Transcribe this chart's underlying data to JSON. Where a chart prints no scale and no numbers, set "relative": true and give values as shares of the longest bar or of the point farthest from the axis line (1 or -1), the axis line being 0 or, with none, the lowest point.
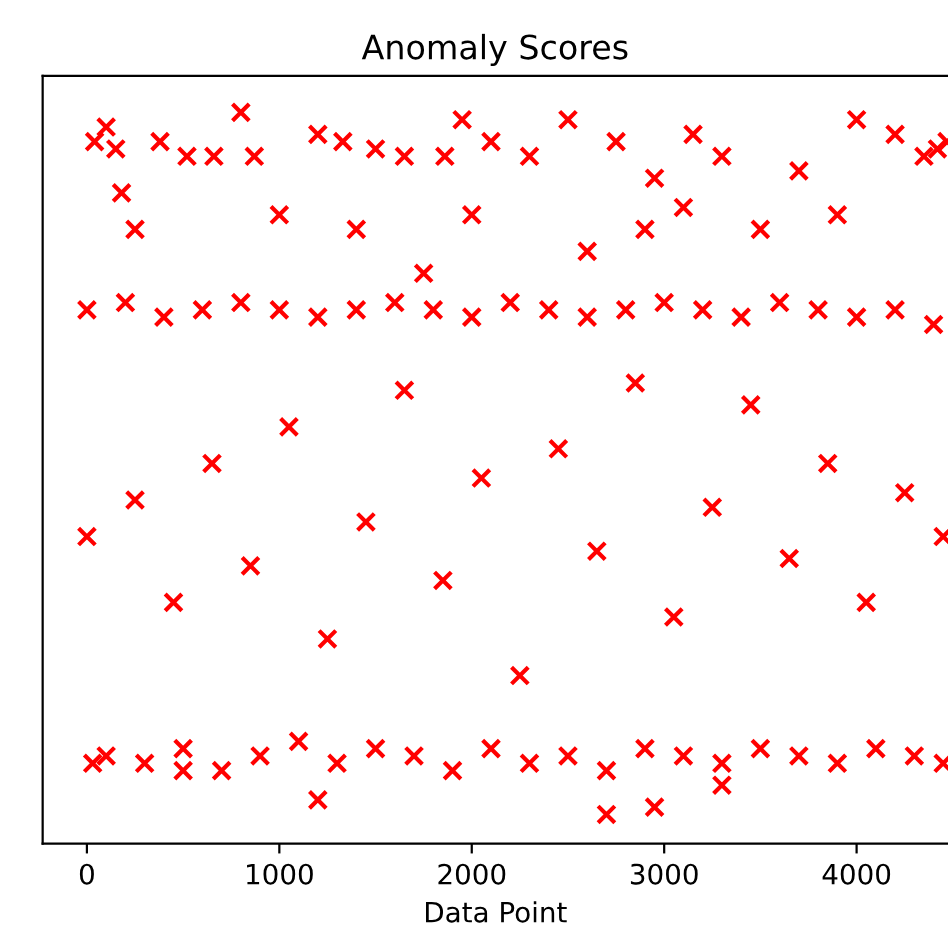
{
  "chart_data": {
    "type": "scatter",
    "title": "Anomaly Scores",
    "xlabel": "Data Point",
    "relative": true,
    "marker": "cross",
    "grid": false,
    "legend": false,
    "xlim": [
      -230,
      4475
    ],
    "xticks": [
      0,
      1000,
      2000,
      3000,
      4000
    ],
    "series": [
      {
        "color": "#ff0000",
        "x": [
          40,
          100,
          150,
          180,
          250,
          380,
          520,
          660,
          800,
          870,
          1000,
          1200,
          1330,
          1400,
          1500,
          1650,
          1750,
          1860,
          1950,
          2000,
          2100,
          2300,
          2500,
          2600,
          2750,
          2900,
          2950,
          3100,
          3150,
          3300,
          3500,
          3700,
          3900,
          4000,
          4200,
          4350,
          4420,
          4470,
          2700,
          2950,
          1200,
          30,
          500,
          3300,
          0,
          200,
          400,
          600,
          800,
          1000,
          1200,
          1400,
          1600,
          1800,
          2000,
          2200,
          2400,
          2600,
          2800,
          3000,
          3200,
          3400,
          3600,
          3800,
          4000,
          4200,
          4400,
          100,
          300,
          500,
          700,
          900,
          1100,
          1300,
          1500,
          1700,
          1900,
          2100,
          2300,
          2500,
          2700,
          2900,
          3100,
          3300,
          3500,
          3700,
          3900,
          4100,
          4300,
          4450,
          0,
          250,
          450,
          650,
          850,
          1050,
          1250,
          1450,
          1650,
          1850,
          2050,
          2250,
          2450,
          2650,
          2850,
          3050,
          3250,
          3450,
          3650,
          3850,
          4050,
          4250,
          4450
        ],
        "values": [
          0.96,
          0.98,
          0.95,
          0.89,
          0.84,
          0.96,
          0.94,
          0.94,
          1.0,
          0.94,
          0.86,
          0.97,
          0.96,
          0.84,
          0.95,
          0.94,
          0.78,
          0.94,
          0.99,
          0.86,
          0.96,
          0.94,
          0.99,
          0.81,
          0.96,
          0.84,
          0.91,
          0.87,
          0.97,
          0.94,
          0.84,
          0.92,
          0.86,
          0.99,
          0.97,
          0.94,
          0.95,
          0.96,
          0.04,
          0.05,
          0.06,
          0.11,
          0.1,
          0.08,
          0.73,
          0.74,
          0.72,
          0.73,
          0.74,
          0.73,
          0.72,
          0.73,
          0.74,
          0.73,
          0.72,
          0.74,
          0.73,
          0.72,
          0.73,
          0.74,
          0.73,
          0.72,
          0.74,
          0.73,
          0.72,
          0.73,
          0.71,
          0.12,
          0.11,
          0.13,
          0.1,
          0.12,
          0.14,
          0.11,
          0.13,
          0.12,
          0.1,
          0.13,
          0.11,
          0.12,
          0.1,
          0.13,
          0.12,
          0.11,
          0.13,
          0.12,
          0.11,
          0.13,
          0.12,
          0.11,
          0.42,
          0.47,
          0.33,
          0.52,
          0.38,
          0.57,
          0.28,
          0.44,
          0.62,
          0.36,
          0.5,
          0.23,
          0.54,
          0.4,
          0.63,
          0.31,
          0.46,
          0.6,
          0.39,
          0.52,
          0.33,
          0.48,
          0.42
        ]
      }
    ]
  }
}
